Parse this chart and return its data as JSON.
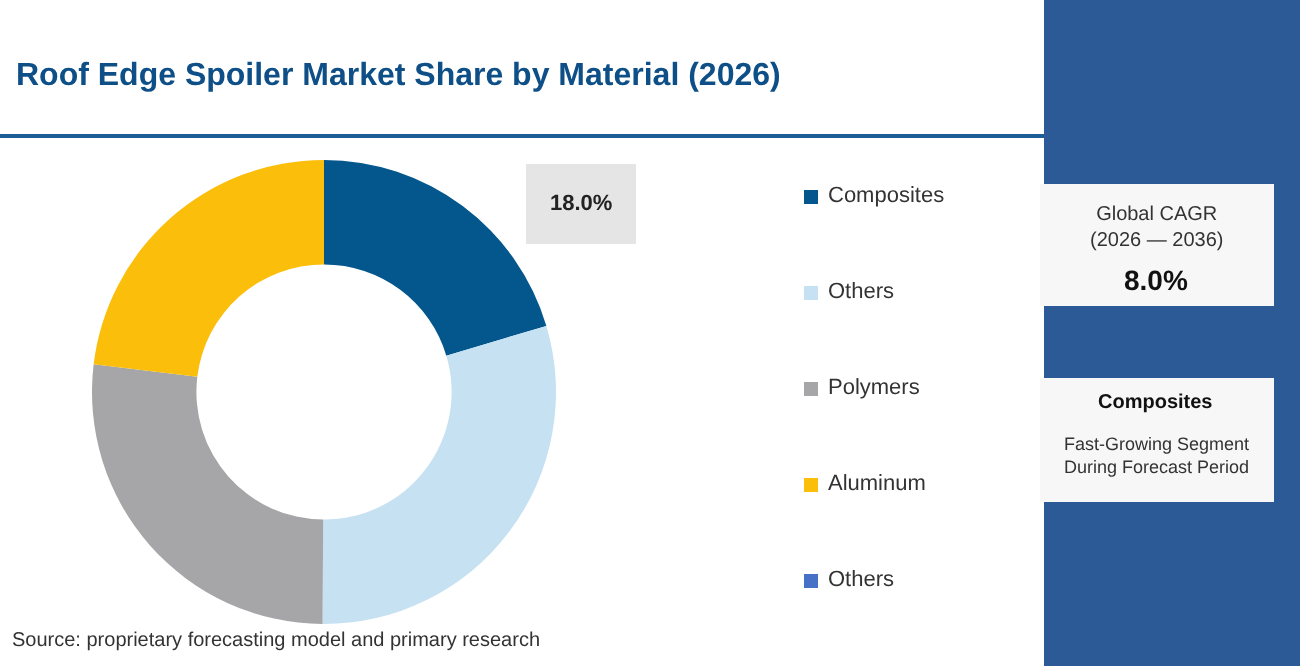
{
  "chart_data": {
    "type": "donut",
    "title": "Roof Edge Spoiler Market Share by Material (2026)",
    "categories": [
      "Composites",
      "Others",
      "Polymers",
      "Aluminum",
      "Others"
    ],
    "values": [
      20.4,
      29.7,
      26.8,
      23.1,
      0
    ],
    "colors": [
      "#03578c",
      "#c5e1f2",
      "#a6a5a7",
      "#fbbe0b",
      "#4671c6"
    ],
    "legend": "right",
    "annotations": [
      "18.0%",
      "Global CAGR\n(2026 — 2036)",
      "8.0%",
      "Composites",
      "Fast-Growing Segment\nDuring Forecast Period",
      "Source: proprietary forecasting model and primary research"
    ]
  }
}
